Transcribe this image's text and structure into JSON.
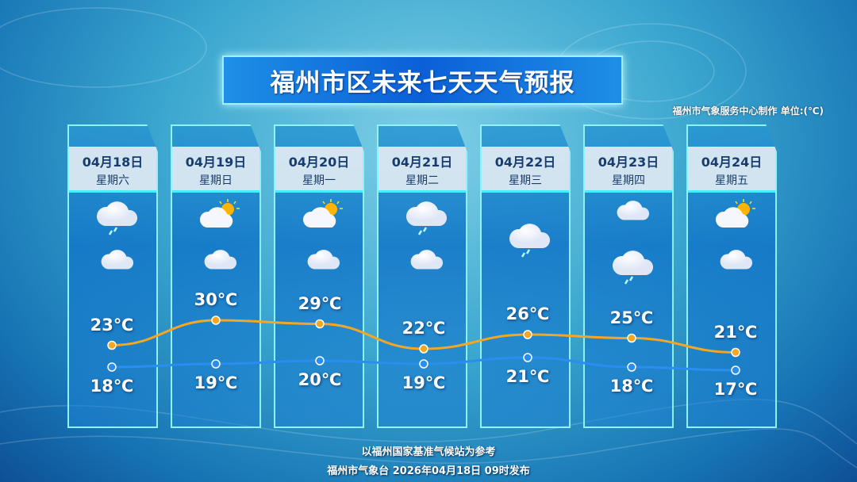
{
  "title": "福州市区未来七天天气预报",
  "credit": "福州市气象服务中心制作   单位:(℃)",
  "days": [
    {
      "date": "04月18日",
      "weekday": "星期六",
      "day_icon": "cloudy-light-rain",
      "night_icon": "cloudy",
      "high": "23℃",
      "low": "18℃",
      "high_value": 23,
      "low_value": 18
    },
    {
      "date": "04月19日",
      "weekday": "星期日",
      "day_icon": "partly-cloudy",
      "night_icon": "cloudy",
      "high": "30℃",
      "low": "19℃",
      "high_value": 30,
      "low_value": 19
    },
    {
      "date": "04月20日",
      "weekday": "星期一",
      "day_icon": "partly-cloudy",
      "night_icon": "cloudy",
      "high": "29℃",
      "low": "20℃",
      "high_value": 29,
      "low_value": 20
    },
    {
      "date": "04月21日",
      "weekday": "星期二",
      "day_icon": "cloudy-light-rain",
      "night_icon": "cloudy",
      "high": "22℃",
      "low": "19℃",
      "high_value": 22,
      "low_value": 19
    },
    {
      "date": "04月22日",
      "weekday": "星期三",
      "day_icon": "cloudy-light-rain",
      "night_icon": "",
      "high": "26℃",
      "low": "21℃",
      "high_value": 26,
      "low_value": 21
    },
    {
      "date": "04月23日",
      "weekday": "星期四",
      "day_icon": "cloudy",
      "night_icon": "cloudy-light-rain",
      "high": "25℃",
      "low": "18℃",
      "high_value": 25,
      "low_value": 18
    },
    {
      "date": "04月24日",
      "weekday": "星期五",
      "day_icon": "partly-cloudy",
      "night_icon": "cloudy",
      "high": "21℃",
      "low": "17℃",
      "high_value": 21,
      "low_value": 17
    }
  ],
  "colors": {
    "high_line": "#f5a623",
    "low_line": "#2a8df0",
    "header_text": "#183c70"
  },
  "footer": {
    "line1": "以福州国家基准气候站为参考",
    "line2": "福州市气象台  2026年04月18日  09时发布"
  }
}
